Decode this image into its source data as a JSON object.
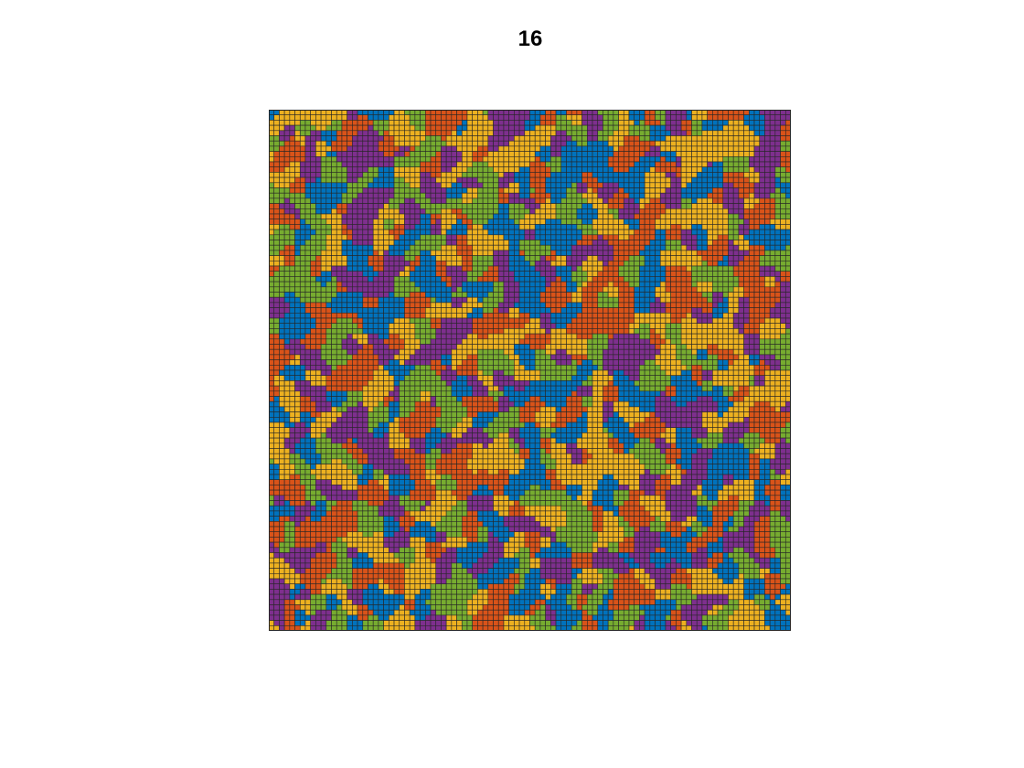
{
  "chart_data": {
    "type": "heatmap",
    "title": "16",
    "grid": true,
    "rows": 100,
    "cols": 100,
    "categories": [
      1,
      2,
      3,
      4,
      5
    ],
    "colors": [
      "#0072BD",
      "#D95319",
      "#EDB120",
      "#7E2F8E",
      "#77AC30"
    ],
    "cell_edge_color": "#262626"
  }
}
